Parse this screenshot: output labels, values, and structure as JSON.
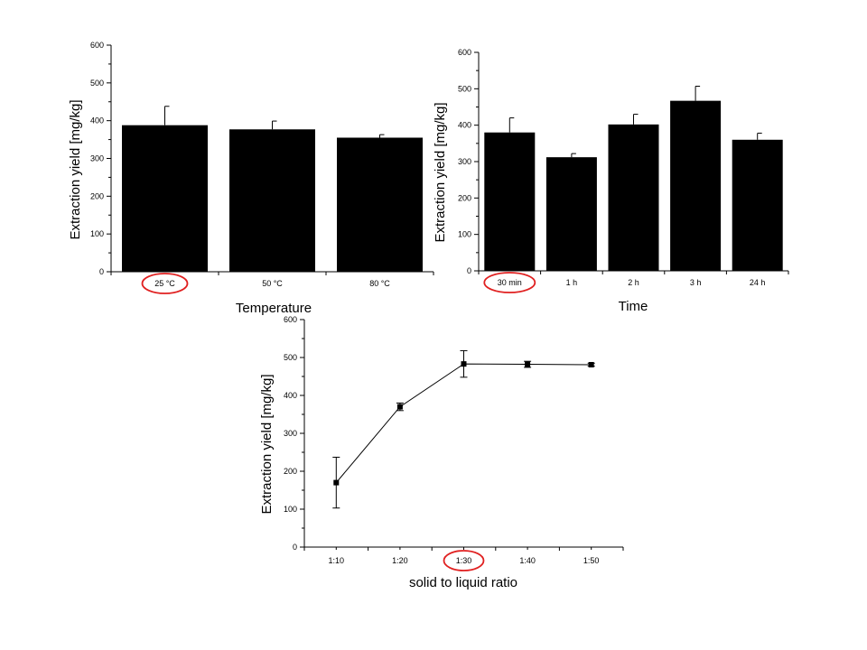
{
  "chart_data": [
    {
      "type": "bar",
      "title": "",
      "xlabel": "Temperature",
      "ylabel": "Extraction yield [mg/kg]",
      "categories": [
        "25 °C",
        "50 °C",
        "80 °C"
      ],
      "values": [
        388,
        377,
        355
      ],
      "errors": [
        50,
        22,
        8
      ],
      "ylim": [
        0,
        600
      ],
      "yticks": [
        "0",
        "100",
        "200",
        "300",
        "400",
        "500",
        "600"
      ],
      "highlighted_category": "25 °C",
      "highlight_color": "#e02020"
    },
    {
      "type": "bar",
      "title": "",
      "xlabel": "Time",
      "ylabel": "Extraction yield [mg/kg]",
      "categories": [
        "30 min",
        "1 h",
        "2 h",
        "3 h",
        "24 h"
      ],
      "values": [
        380,
        312,
        402,
        467,
        360
      ],
      "errors": [
        40,
        10,
        28,
        40,
        18
      ],
      "ylim": [
        0,
        600
      ],
      "yticks": [
        "0",
        "100",
        "200",
        "300",
        "400",
        "500",
        "600"
      ],
      "highlighted_category": "30 min",
      "highlight_color": "#e02020"
    },
    {
      "type": "line",
      "title": "",
      "xlabel": "solid to liquid ratio",
      "ylabel": "Extraction yield [mg/kg]",
      "categories": [
        "1:10",
        "1:20",
        "1:30",
        "1:40",
        "1:50"
      ],
      "values": [
        170,
        370,
        483,
        482,
        481
      ],
      "errors": [
        67,
        10,
        35,
        8,
        4
      ],
      "ylim": [
        0,
        600
      ],
      "yticks": [
        "0",
        "100",
        "200",
        "300",
        "400",
        "500",
        "600"
      ],
      "highlighted_category": "1:30",
      "highlight_color": "#e02020"
    }
  ]
}
